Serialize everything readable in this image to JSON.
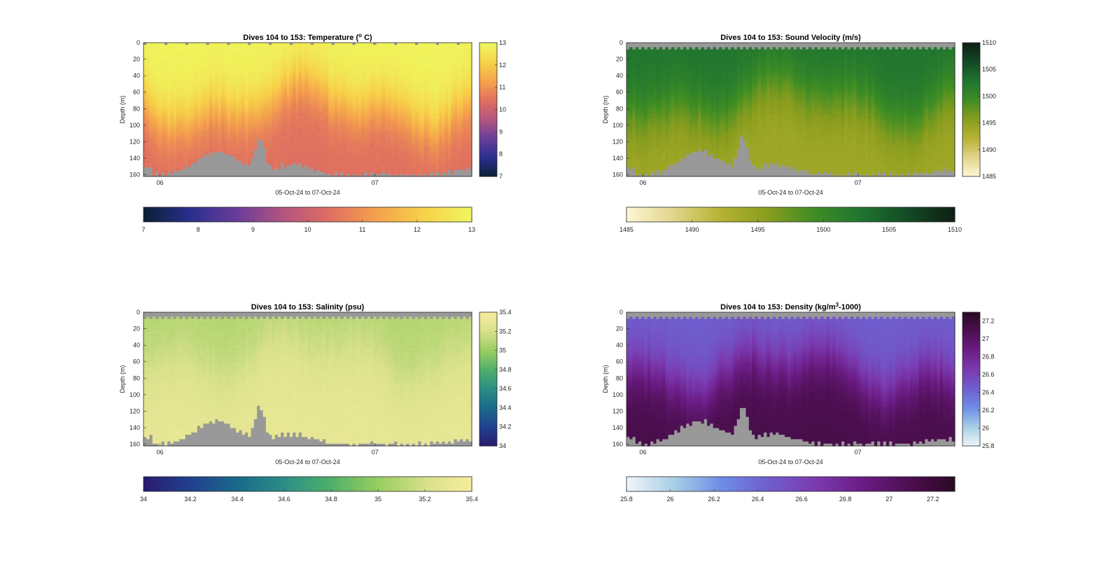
{
  "figure": {
    "panel_count": 4
  },
  "chart_data": [
    {
      "type": "heatmap",
      "title": "Dives 104 to 153: Temperature (",
      "title_sup": "o",
      "title_end": " C)",
      "xlabel": "05-Oct-24 to 07-Oct-24",
      "ylabel": "Depth (m)",
      "x_tick_labels": [
        "06",
        "07"
      ],
      "x_ticks_fraction": [
        0.05,
        0.705
      ],
      "y_ticks": [
        0,
        20,
        40,
        60,
        80,
        100,
        120,
        140,
        160
      ],
      "ylim": [
        0,
        162
      ],
      "clim": [
        7,
        13
      ],
      "colorbar_ticks": [
        7,
        8,
        9,
        10,
        11,
        12,
        13
      ],
      "colormap": [
        "#0b1f33",
        "#2a2f8f",
        "#6a3d9a",
        "#b4557f",
        "#e07060",
        "#f5a34c",
        "#f7d24a",
        "#eef75e"
      ],
      "surface_value": 12.9,
      "deep_value": 10.4,
      "transition_center_m": 75,
      "transition_width_m": 55,
      "mask_color": "#999999"
    },
    {
      "type": "heatmap",
      "title": "Dives 104 to 153: Sound Velocity (m/s)",
      "xlabel": "05-Oct-24 to 07-Oct-24",
      "ylabel": "Depth (m)",
      "x_tick_labels": [
        "06",
        "07"
      ],
      "x_ticks_fraction": [
        0.05,
        0.705
      ],
      "y_ticks": [
        0,
        20,
        40,
        60,
        80,
        100,
        120,
        140,
        160
      ],
      "ylim": [
        0,
        162
      ],
      "clim": [
        1485,
        1510
      ],
      "colorbar_ticks": [
        1485,
        1490,
        1495,
        1500,
        1505,
        1510
      ],
      "colormap": [
        "#fdf7d6",
        "#e2d58c",
        "#b7b233",
        "#8a9d1e",
        "#3f8d24",
        "#1f7530",
        "#134a26",
        "#0e1f14"
      ],
      "surface_value": 1502.8,
      "deep_value": 1494.0,
      "transition_center_m": 70,
      "transition_width_m": 60,
      "mask_color": "#999999"
    },
    {
      "type": "heatmap",
      "title": "Dives 104 to 153: Salinity (psu)",
      "xlabel": "05-Oct-24 to 07-Oct-24",
      "ylabel": "Depth (m)",
      "x_tick_labels": [
        "06",
        "07"
      ],
      "x_ticks_fraction": [
        0.05,
        0.705
      ],
      "y_ticks": [
        0,
        20,
        40,
        60,
        80,
        100,
        120,
        140,
        160
      ],
      "ylim": [
        0,
        162
      ],
      "clim": [
        34,
        35.4
      ],
      "colorbar_ticks": [
        34,
        34.2,
        34.4,
        34.6,
        34.8,
        35,
        35.2,
        35.4
      ],
      "colormap": [
        "#2a1a6e",
        "#21418f",
        "#1b6a8a",
        "#2a8e86",
        "#4fb06a",
        "#98cd60",
        "#d7e08a",
        "#f7ed9e"
      ],
      "surface_value": 35.08,
      "deep_value": 35.3,
      "transition_center_m": 55,
      "transition_width_m": 70,
      "mask_color": "#999999"
    },
    {
      "type": "heatmap",
      "title": "Dives 104 to 153: Density (kg/m",
      "title_sup": "3",
      "title_end": "-1000)",
      "xlabel": "05-Oct-24 to 07-Oct-24",
      "ylabel": "Depth (m)",
      "x_tick_labels": [
        "06",
        "07"
      ],
      "x_ticks_fraction": [
        0.05,
        0.705
      ],
      "y_ticks": [
        0,
        20,
        40,
        60,
        80,
        100,
        120,
        140,
        160
      ],
      "ylim": [
        0,
        162
      ],
      "clim": [
        25.8,
        27.3
      ],
      "colorbar_ticks": [
        25.8,
        26,
        26.2,
        26.4,
        26.6,
        26.8,
        27,
        27.2
      ],
      "colormap": [
        "#f0f5f8",
        "#a9cfe6",
        "#6e8ee6",
        "#6f5fcf",
        "#7a3bb0",
        "#6c1d86",
        "#4e0f52",
        "#2a0a23"
      ],
      "surface_value": 26.45,
      "deep_value": 27.12,
      "transition_center_m": 72,
      "transition_width_m": 55,
      "mask_color": "#999999"
    }
  ]
}
